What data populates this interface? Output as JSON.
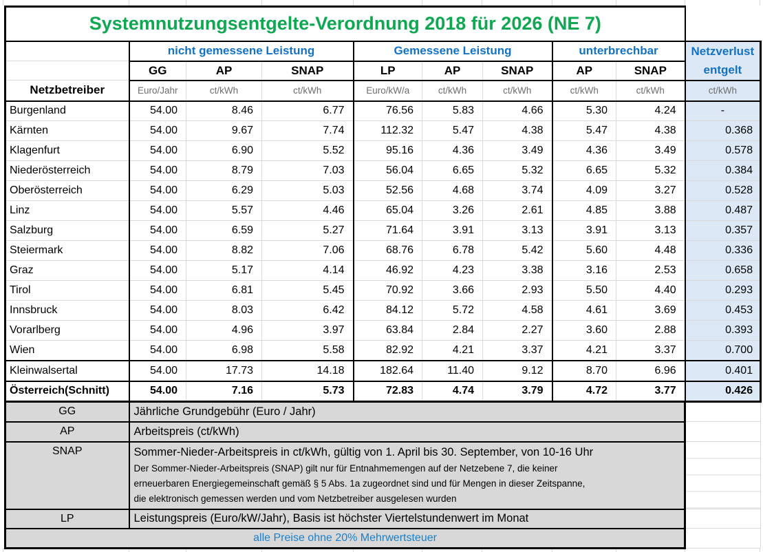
{
  "title": "Systemnutzungsentgelte-Verordnung 2018 für 2026 (NE 7)",
  "colors": {
    "title_green": "#0FA752",
    "header_blue": "#1273C4",
    "note_blue": "#1B7FCB",
    "netzverlust_fill": "#DCE8F5",
    "legend_fill": "#D8D8D8",
    "unit_text": "#6E6E6E"
  },
  "table": {
    "header": {
      "row_label": "Netzbetreiber",
      "groups": [
        {
          "label": "nicht gemessene Leistung",
          "codes": [
            "GG",
            "AP",
            "SNAP"
          ],
          "units": [
            "Euro/Jahr",
            "ct/kWh",
            "ct/kWh"
          ]
        },
        {
          "label": "Gemessene Leistung",
          "codes": [
            "LP",
            "AP",
            "SNAP"
          ],
          "units": [
            "Euro/kW/a",
            "ct/kWh",
            "ct/kWh"
          ]
        },
        {
          "label": "unterbrechbar",
          "codes": [
            "AP",
            "SNAP"
          ],
          "units": [
            "ct/kWh",
            "ct/kWh"
          ]
        }
      ],
      "netzverlust": {
        "title": "Netzverlust",
        "subtitle": "entgelt",
        "unit": "ct/kWh"
      }
    },
    "rows": [
      {
        "name": "Burgenland",
        "values": [
          "54.00",
          "8.46",
          "6.77",
          "76.56",
          "5.83",
          "4.66",
          "5.30",
          "4.24",
          "-"
        ],
        "separator_above": false,
        "bold": false
      },
      {
        "name": "Kärnten",
        "values": [
          "54.00",
          "9.67",
          "7.74",
          "112.32",
          "5.47",
          "4.38",
          "5.47",
          "4.38",
          "0.368"
        ],
        "separator_above": false,
        "bold": false
      },
      {
        "name": "Klagenfurt",
        "values": [
          "54.00",
          "6.90",
          "5.52",
          "95.16",
          "4.36",
          "3.49",
          "4.36",
          "3.49",
          "0.578"
        ],
        "separator_above": false,
        "bold": false
      },
      {
        "name": "Niederösterreich",
        "values": [
          "54.00",
          "8.79",
          "7.03",
          "56.04",
          "6.65",
          "5.32",
          "6.65",
          "5.32",
          "0.384"
        ],
        "separator_above": false,
        "bold": false
      },
      {
        "name": "Oberösterreich",
        "values": [
          "54.00",
          "6.29",
          "5.03",
          "52.56",
          "4.68",
          "3.74",
          "4.09",
          "3.27",
          "0.528"
        ],
        "separator_above": false,
        "bold": false
      },
      {
        "name": "Linz",
        "values": [
          "54.00",
          "5.57",
          "4.46",
          "65.04",
          "3.26",
          "2.61",
          "4.85",
          "3.88",
          "0.487"
        ],
        "separator_above": false,
        "bold": false
      },
      {
        "name": "Salzburg",
        "values": [
          "54.00",
          "6.59",
          "5.27",
          "71.64",
          "3.91",
          "3.13",
          "3.91",
          "3.13",
          "0.357"
        ],
        "separator_above": false,
        "bold": false
      },
      {
        "name": "Steiermark",
        "values": [
          "54.00",
          "8.82",
          "7.06",
          "68.76",
          "6.78",
          "5.42",
          "5.60",
          "4.48",
          "0.336"
        ],
        "separator_above": false,
        "bold": false
      },
      {
        "name": "Graz",
        "values": [
          "54.00",
          "5.17",
          "4.14",
          "46.92",
          "4.23",
          "3.38",
          "3.16",
          "2.53",
          "0.658"
        ],
        "separator_above": false,
        "bold": false
      },
      {
        "name": "Tirol",
        "values": [
          "54.00",
          "6.81",
          "5.45",
          "70.92",
          "3.66",
          "2.93",
          "5.50",
          "4.40",
          "0.293"
        ],
        "separator_above": false,
        "bold": false
      },
      {
        "name": "Innsbruck",
        "values": [
          "54.00",
          "8.03",
          "6.42",
          "84.12",
          "5.72",
          "4.58",
          "4.61",
          "3.69",
          "0.453"
        ],
        "separator_above": false,
        "bold": false
      },
      {
        "name": "Vorarlberg",
        "values": [
          "54.00",
          "4.96",
          "3.97",
          "63.84",
          "2.84",
          "2.27",
          "3.60",
          "2.88",
          "0.393"
        ],
        "separator_above": false,
        "bold": false
      },
      {
        "name": "Wien",
        "values": [
          "54.00",
          "6.98",
          "5.58",
          "82.92",
          "4.21",
          "3.37",
          "4.21",
          "3.37",
          "0.700"
        ],
        "separator_above": false,
        "bold": false
      },
      {
        "name": "Kleinwalsertal",
        "values": [
          "54.00",
          "17.73",
          "14.18",
          "182.64",
          "11.40",
          "9.12",
          "8.70",
          "6.96",
          "0.401"
        ],
        "separator_above": true,
        "bold": false
      },
      {
        "name": "Österreich(Schnitt)",
        "values": [
          "54.00",
          "7.16",
          "5.73",
          "72.83",
          "4.74",
          "3.79",
          "4.72",
          "3.77",
          "0.426"
        ],
        "separator_above": false,
        "bold": true
      }
    ]
  },
  "legend": [
    {
      "code": "GG",
      "text": "Jährliche Grundgebühr (Euro / Jahr)"
    },
    {
      "code": "AP",
      "text": "Arbeitspreis (ct/kWh)"
    },
    {
      "code": "SNAP",
      "text": "Sommer-Nieder-Arbeitspreis in ct/kWh, gültig von 1. April bis 30. September, von 10-16 Uhr",
      "note_lines": [
        "Der Sommer-Nieder-Arbeitspreis (SNAP) gilt nur für Entnahmemengen auf der Netzebene 7, die keiner",
        "erneuerbaren Energiegemeinschaft gemäß § 5 Abs. 1a zugeordnet sind und für Mengen in dieser Zeitspanne,",
        "die elektronisch gemessen werden und vom Netzbetreiber ausgelesen wurden"
      ]
    },
    {
      "code": "LP",
      "text": "Leistungspreis (Euro/kW/Jahr), Basis ist höchster Viertelstundenwert im Monat"
    }
  ],
  "footer_note": "alle Preise ohne 20% Mehrwertsteuer"
}
